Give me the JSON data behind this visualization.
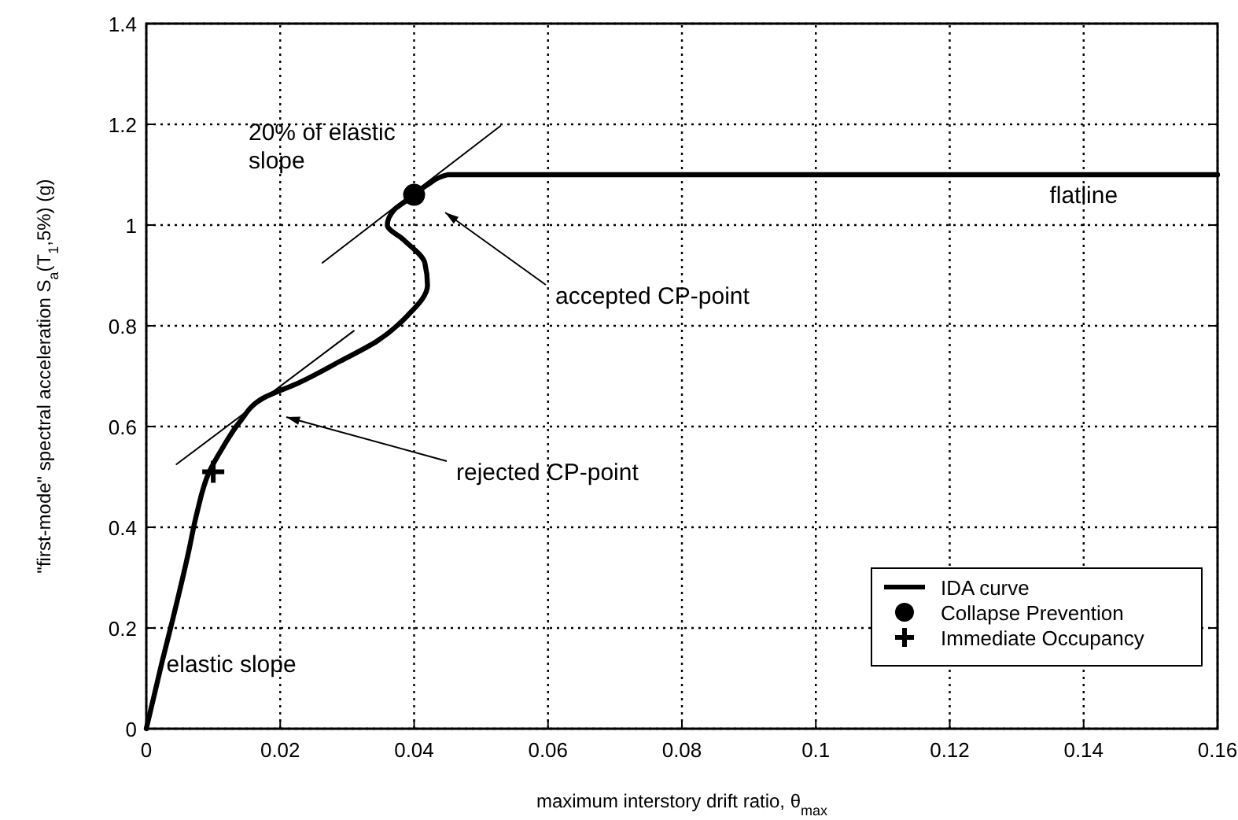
{
  "chart_data": {
    "type": "line",
    "xlabel": "maximum interstory drift ratio, θ$_{max}$",
    "ylabel": "\"first-mode\" spectral acceleration S$_{a}$(T$_{1}$,5%) (g)",
    "xlim": [
      0,
      0.16
    ],
    "ylim": [
      0,
      1.4
    ],
    "xticks": [
      0,
      0.02,
      0.04,
      0.06,
      0.08,
      0.1,
      0.12,
      0.14,
      0.16
    ],
    "yticks": [
      0,
      0.2,
      0.4,
      0.6,
      0.8,
      1,
      1.2,
      1.4
    ],
    "grid": true,
    "legend": "bottom right",
    "series": [
      {
        "name": "IDA curve",
        "color": "#000000",
        "marker": "none",
        "x": [
          0,
          0.0024,
          0.004,
          0.0063,
          0.0075,
          0.0094,
          0.0115,
          0.014,
          0.0174,
          0.0228,
          0.029,
          0.0345,
          0.039,
          0.042,
          0.0416,
          0.0385,
          0.036,
          0.037,
          0.0397,
          0.042,
          0.045,
          0.16
        ],
        "values": [
          0,
          0.135,
          0.22,
          0.35,
          0.425,
          0.51,
          0.56,
          0.61,
          0.656,
          0.687,
          0.73,
          0.77,
          0.82,
          0.88,
          0.925,
          0.97,
          1.0,
          1.03,
          1.056,
          1.08,
          1.1,
          1.1
        ]
      },
      {
        "color": "#000000",
        "marker": "none",
        "x": [
          0.0045,
          0.031
        ],
        "values": [
          0.525,
          0.79
        ]
      },
      {
        "color": "#000000",
        "marker": "none",
        "x": [
          0.0263,
          0.0529
        ],
        "values": [
          0.925,
          1.197
        ]
      },
      {
        "name": "Collapse Prevention",
        "type": "scatter",
        "color": "#000000",
        "marker": "circle",
        "x": [
          0.04
        ],
        "values": [
          1.06
        ]
      },
      {
        "name": "Immediate Occupancy",
        "type": "scatter",
        "color": "#000000",
        "marker": "cross",
        "x": [
          0.01
        ],
        "values": [
          0.51
        ]
      }
    ],
    "annotations": [
      "accepted CP-point",
      "rejected CP-point",
      {
        "text": "flatline",
        "x": 0.14,
        "y": 1.1
      },
      "20% of elastic slope",
      {
        "text": "elastic slope",
        "x": 0.003,
        "y": 0.1
      }
    ]
  }
}
